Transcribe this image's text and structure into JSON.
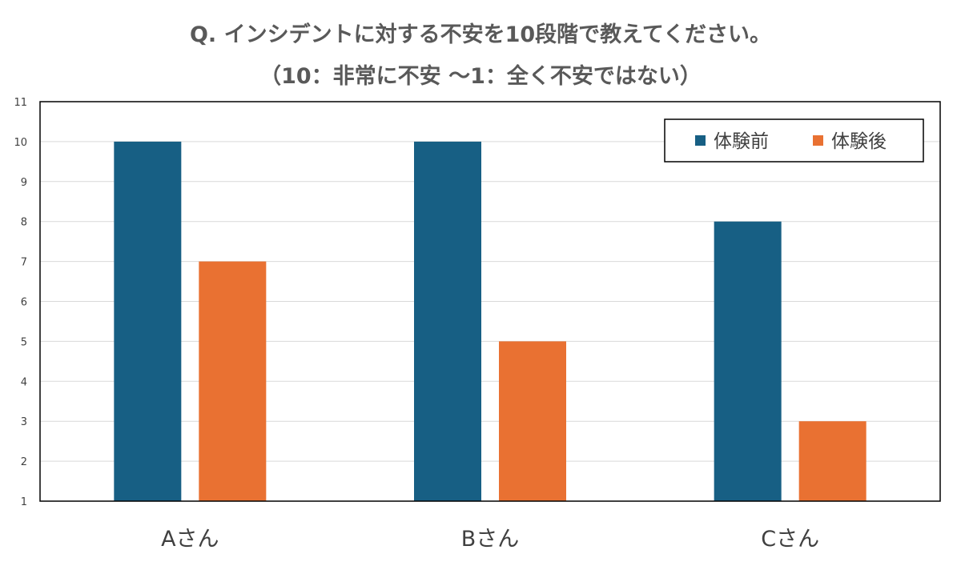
{
  "chart_data": {
    "type": "bar",
    "title": "Q. インシデントに対する不安を10段階で教えてください。",
    "subtitle": "（10：非常に不安 ～1：全く不安ではない）",
    "categories": [
      "Aさん",
      "Bさん",
      "Cさん"
    ],
    "series": [
      {
        "name": "体験前",
        "values": [
          10,
          10,
          8
        ],
        "color": "#175F84"
      },
      {
        "name": "体験後",
        "values": [
          7,
          5,
          3
        ],
        "color": "#E97132"
      }
    ],
    "yticks": [
      "1",
      "2",
      "3",
      "4",
      "5",
      "6",
      "7",
      "8",
      "9",
      "10",
      "11"
    ],
    "ylim": [
      1,
      11
    ],
    "grid": true,
    "legend_position": "top-right",
    "xlabel": "",
    "ylabel": ""
  }
}
